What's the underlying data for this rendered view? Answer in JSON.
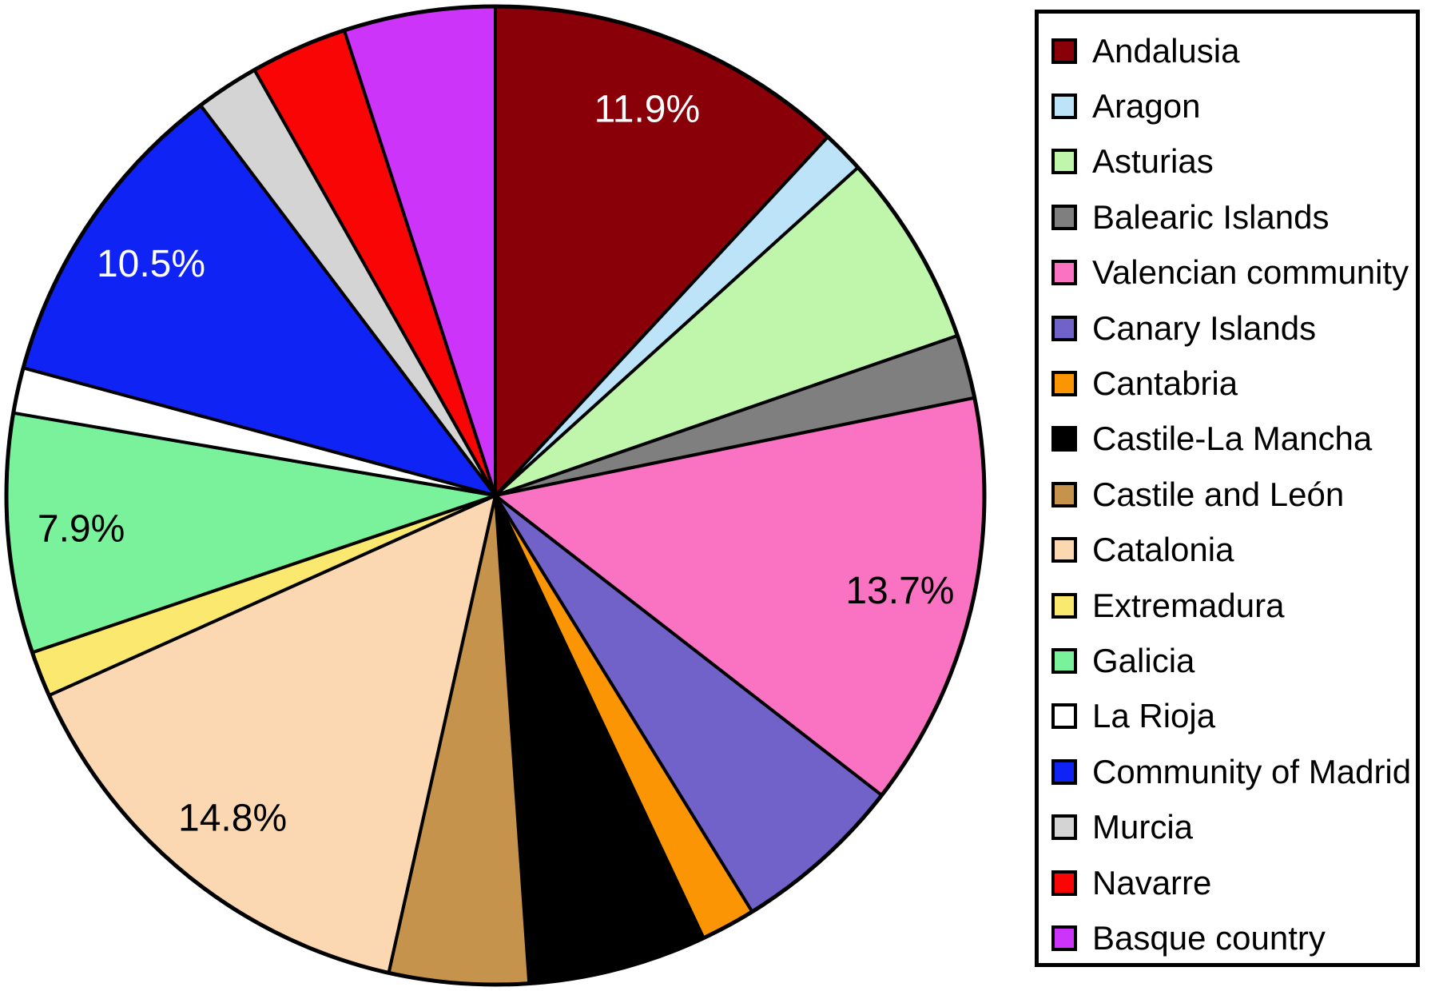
{
  "figure": {
    "background_color": "#FFFFFF",
    "outline_color": "#000000"
  },
  "chart_data": {
    "type": "pie",
    "title": "",
    "legend_position": "right",
    "start_angle_deg": 0,
    "direction": "clockwise",
    "start_reference": "top",
    "slice_border_color": "#000000",
    "slices": [
      {
        "label": "Andalusia",
        "value": 11.9,
        "color": "#8A0009",
        "percent_label": "11.9%",
        "percent_label_color": "#FFFFFF"
      },
      {
        "label": "Aragon",
        "value": 1.4,
        "color": "#BCE3F8",
        "percent_label": null,
        "percent_label_color": "#000000"
      },
      {
        "label": "Asturias",
        "value": 6.4,
        "color": "#C0F5AC",
        "percent_label": null,
        "percent_label_color": "#000000"
      },
      {
        "label": "Balearic Islands",
        "value": 2.1,
        "color": "#7F7F7F",
        "percent_label": null,
        "percent_label_color": "#000000"
      },
      {
        "label": "Valencian community",
        "value": 13.7,
        "color": "#FA73C2",
        "percent_label": "13.7%",
        "percent_label_color": "#000000"
      },
      {
        "label": "Canary Islands",
        "value": 5.7,
        "color": "#7062C8",
        "percent_label": null,
        "percent_label_color": "#000000"
      },
      {
        "label": "Cantabria",
        "value": 1.8,
        "color": "#FC9503",
        "percent_label": null,
        "percent_label_color": "#000000"
      },
      {
        "label": "Castile-La Mancha",
        "value": 5.9,
        "color": "#000000",
        "percent_label": null,
        "percent_label_color": "#FFFFFF"
      },
      {
        "label": "Castile and León",
        "value": 4.6,
        "color": "#C6934C",
        "percent_label": null,
        "percent_label_color": "#000000"
      },
      {
        "label": "Catalonia",
        "value": 14.8,
        "color": "#FBD7B2",
        "percent_label": "14.8%",
        "percent_label_color": "#000000"
      },
      {
        "label": "Extremadura",
        "value": 1.5,
        "color": "#FAE96E",
        "percent_label": null,
        "percent_label_color": "#000000"
      },
      {
        "label": "Galicia",
        "value": 7.9,
        "color": "#7AF29B",
        "percent_label": "7.9%",
        "percent_label_color": "#000000"
      },
      {
        "label": "La Rioja",
        "value": 1.5,
        "color": "#FFFFFF",
        "percent_label": null,
        "percent_label_color": "#000000"
      },
      {
        "label": "Community of Madrid",
        "value": 10.5,
        "color": "#1023F5",
        "percent_label": "10.5%",
        "percent_label_color": "#FFFFFF"
      },
      {
        "label": "Murcia",
        "value": 2.1,
        "color": "#D4D4D4",
        "percent_label": null,
        "percent_label_color": "#000000"
      },
      {
        "label": "Navarre",
        "value": 3.2,
        "color": "#F90505",
        "percent_label": null,
        "percent_label_color": "#FFFFFF"
      },
      {
        "label": "Basque country",
        "value": 5.0,
        "color": "#CC34FA",
        "percent_label": null,
        "percent_label_color": "#000000"
      }
    ]
  }
}
